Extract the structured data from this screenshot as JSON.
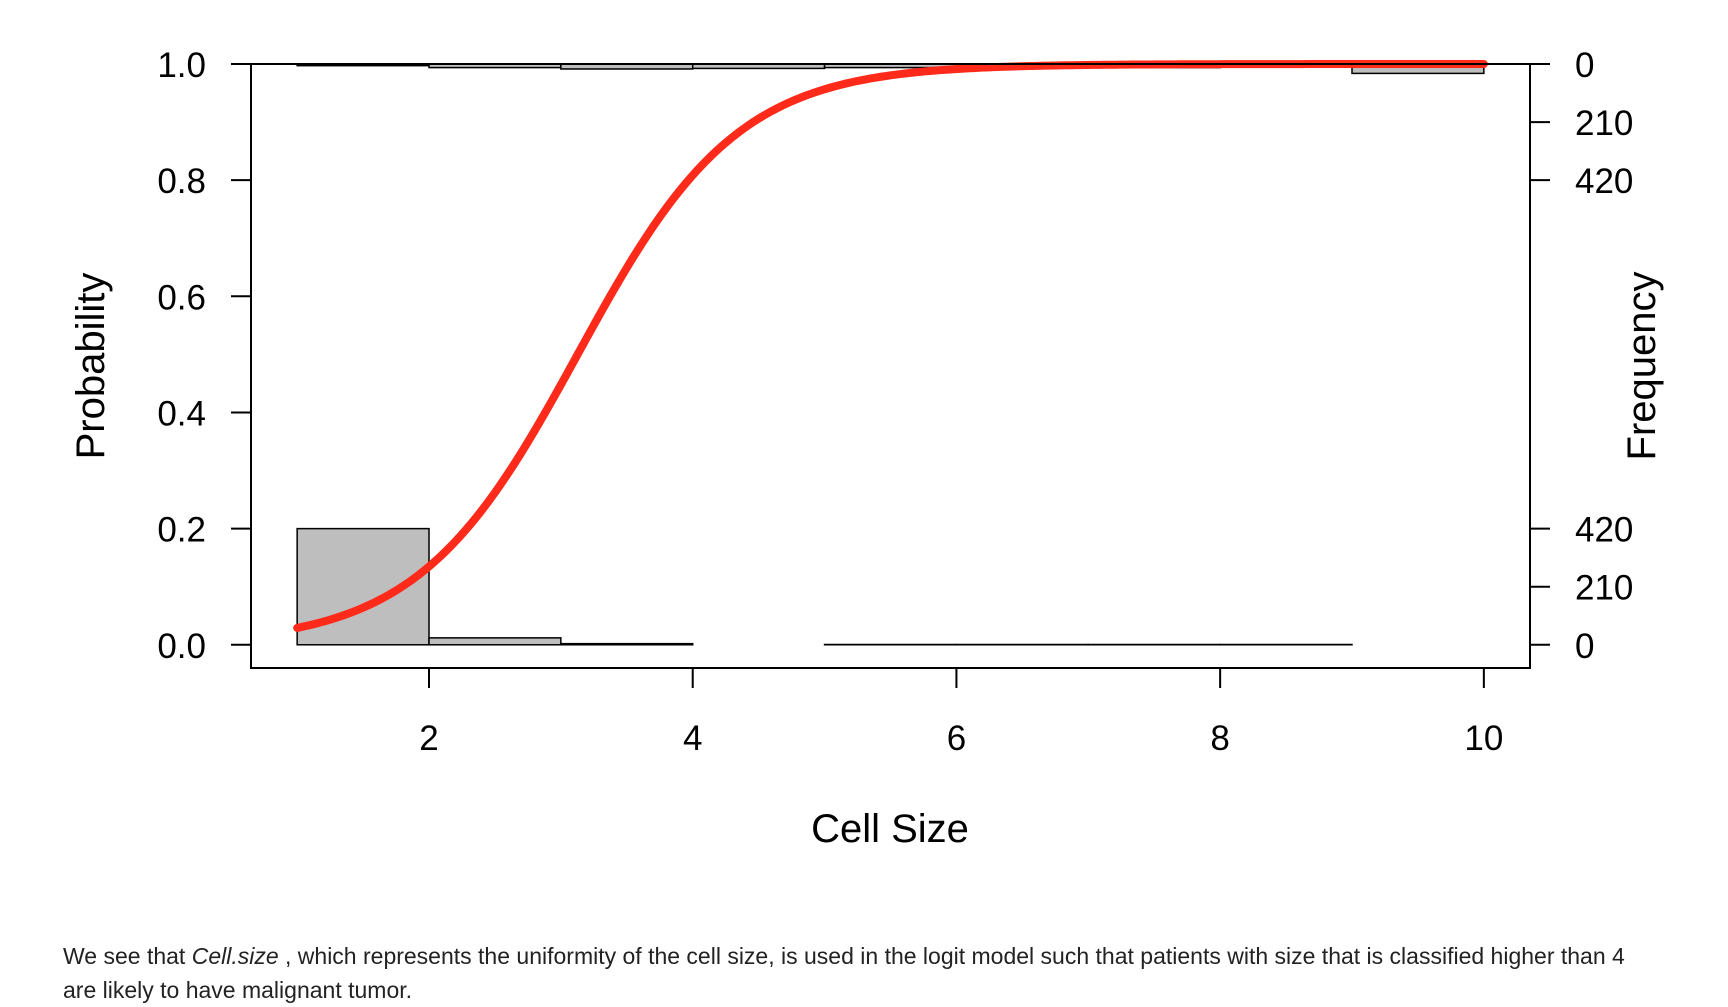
{
  "chart_data": {
    "type": "line",
    "xlabel": "Cell Size",
    "ylabel_left": "Probability",
    "ylabel_right": "Frequency",
    "xlim": [
      0.65,
      10.35
    ],
    "ylim": [
      -0.04,
      1.0
    ],
    "x_ticks": [
      2,
      4,
      6,
      8,
      10
    ],
    "y_ticks": [
      0.0,
      0.2,
      0.4,
      0.6,
      0.8,
      1.0
    ],
    "x_tick_labels": [
      "2",
      "4",
      "6",
      "8",
      "10"
    ],
    "y_tick_labels": [
      "0.0",
      "0.2",
      "0.4",
      "0.6",
      "0.8",
      "1.0"
    ],
    "right_axis_bottom_ticks": [
      0,
      210,
      420
    ],
    "right_axis_top_ticks": [
      0,
      210,
      420
    ],
    "right_axis_bottom_labels": [
      "0",
      "210",
      "420"
    ],
    "right_axis_top_labels": [
      "0",
      "210",
      "420"
    ],
    "histogram_scale": 2100,
    "logit_curve": {
      "intercept": -5.16,
      "slope": 1.65,
      "x_range": [
        1,
        10
      ],
      "color": "#ff2a1a"
    },
    "histogram_bottom": {
      "description": "counts of outcome 0",
      "bins": [
        {
          "x0": 1,
          "x1": 2,
          "count": 420
        },
        {
          "x0": 2,
          "x1": 3,
          "count": 25
        },
        {
          "x0": 3,
          "x1": 4,
          "count": 4
        },
        {
          "x0": 4,
          "x1": 5,
          "count": 0
        },
        {
          "x0": 5,
          "x1": 6,
          "count": 1
        },
        {
          "x0": 6,
          "x1": 7,
          "count": 1
        },
        {
          "x0": 7,
          "x1": 8,
          "count": 1
        },
        {
          "x0": 8,
          "x1": 9,
          "count": 1
        },
        {
          "x0": 9,
          "x1": 10,
          "count": 0
        }
      ],
      "fill": "#bebebe"
    },
    "histogram_top": {
      "description": "counts of outcome 1",
      "bins": [
        {
          "x0": 1,
          "x1": 2,
          "count": 6
        },
        {
          "x0": 2,
          "x1": 3,
          "count": 13
        },
        {
          "x0": 3,
          "x1": 4,
          "count": 18
        },
        {
          "x0": 4,
          "x1": 5,
          "count": 16
        },
        {
          "x0": 5,
          "x1": 6,
          "count": 13
        },
        {
          "x0": 6,
          "x1": 7,
          "count": 0
        },
        {
          "x0": 7,
          "x1": 8,
          "count": 13
        },
        {
          "x0": 8,
          "x1": 9,
          "count": 0
        },
        {
          "x0": 9,
          "x1": 10,
          "count": 34
        }
      ],
      "fill": "#bebebe"
    }
  },
  "caption": {
    "prefix": "We see that ",
    "variable": "Cell.size",
    "suffix": " , which represents the uniformity of the cell size, is used in the logit model such that patients with size that is classified higher than 4 are likely to have malignant tumor."
  }
}
